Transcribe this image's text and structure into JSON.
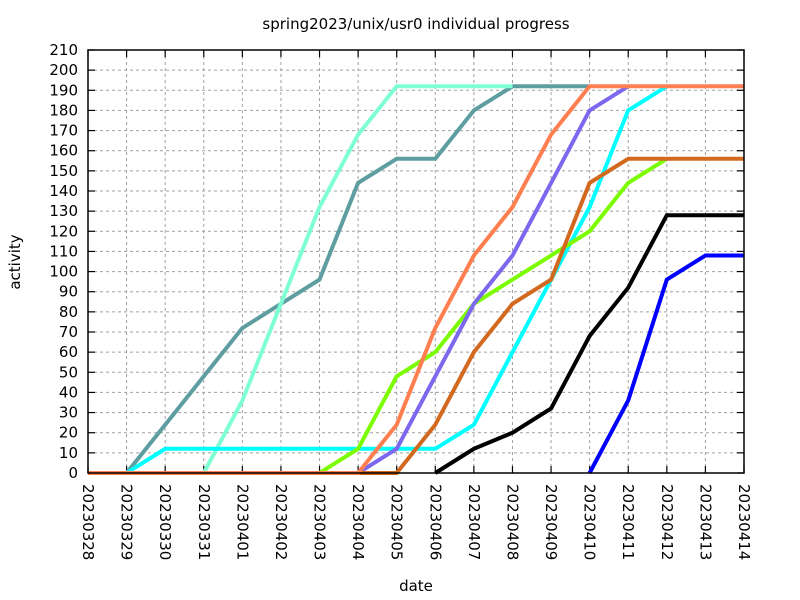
{
  "chart_data": {
    "type": "line",
    "title": "spring2023/unix/usr0 individual progress",
    "xlabel": "date",
    "ylabel": "activity",
    "ylim": [
      0,
      210
    ],
    "yticks": [
      0,
      10,
      20,
      30,
      40,
      50,
      60,
      70,
      80,
      90,
      100,
      110,
      120,
      130,
      140,
      150,
      160,
      170,
      180,
      190,
      200,
      210
    ],
    "grid": true,
    "legend": "none",
    "categories": [
      "20230328",
      "20230329",
      "20230330",
      "20230331",
      "20230401",
      "20230402",
      "20230403",
      "20230404",
      "20230405",
      "20230406",
      "20230407",
      "20230408",
      "20230409",
      "20230410",
      "20230411",
      "20230412",
      "20230413",
      "20230414"
    ],
    "series": [
      {
        "name": "cadetblue",
        "color": "#5f9ea0",
        "values": [
          0,
          0,
          24,
          48,
          72,
          84,
          96,
          144,
          156,
          156,
          180,
          192,
          192,
          192,
          null,
          null,
          null,
          null
        ]
      },
      {
        "name": "aquamarine",
        "color": "#7fffd4",
        "values": [
          0,
          0,
          0,
          0,
          36,
          84,
          132,
          168,
          192,
          192,
          192,
          192,
          null,
          null,
          null,
          null,
          null,
          null
        ]
      },
      {
        "name": "cyan",
        "color": "#00ffff",
        "values": [
          0,
          0,
          12,
          12,
          12,
          12,
          12,
          12,
          12,
          12,
          24,
          60,
          96,
          132,
          180,
          192,
          null,
          null
        ]
      },
      {
        "name": "chartreuse",
        "color": "#7cfc00",
        "values": [
          0,
          0,
          0,
          0,
          0,
          0,
          0,
          12,
          48,
          60,
          84,
          96,
          108,
          120,
          144,
          156,
          null,
          null
        ]
      },
      {
        "name": "mediumslateblue",
        "color": "#7b68ee",
        "values": [
          0,
          0,
          0,
          0,
          0,
          0,
          0,
          0,
          12,
          48,
          84,
          108,
          144,
          180,
          192,
          null,
          null,
          null
        ]
      },
      {
        "name": "chocolate",
        "color": "#d2691e",
        "values": [
          0,
          0,
          0,
          0,
          0,
          0,
          0,
          0,
          0,
          24,
          60,
          84,
          96,
          144,
          156,
          156,
          156,
          156
        ]
      },
      {
        "name": "black",
        "color": "#000000",
        "values": [
          null,
          null,
          null,
          null,
          null,
          null,
          null,
          null,
          null,
          0,
          12,
          20,
          32,
          68,
          92,
          128,
          128,
          128
        ]
      },
      {
        "name": "blue",
        "color": "#0000ff",
        "values": [
          null,
          null,
          null,
          null,
          null,
          null,
          null,
          null,
          null,
          null,
          null,
          null,
          null,
          0,
          36,
          96,
          108,
          108
        ]
      },
      {
        "name": "coral",
        "color": "#ff7f50",
        "values": [
          0,
          0,
          0,
          0,
          0,
          0,
          0,
          0,
          24,
          72,
          108,
          132,
          168,
          192,
          192,
          192,
          192,
          192
        ]
      }
    ]
  }
}
